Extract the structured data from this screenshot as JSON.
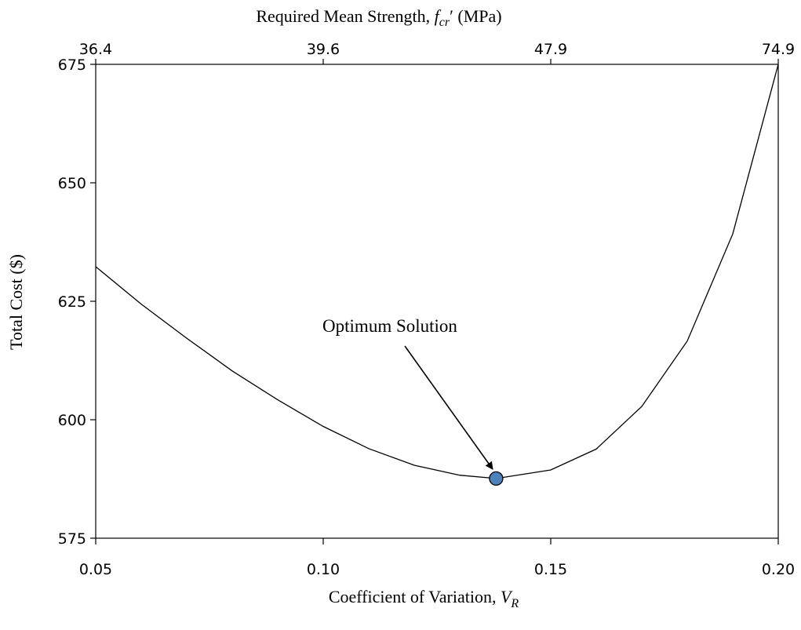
{
  "chart_data": {
    "type": "line",
    "x": [
      0.05,
      0.06,
      0.07,
      0.08,
      0.09,
      0.1,
      0.11,
      0.12,
      0.13,
      0.138,
      0.15,
      0.16,
      0.17,
      0.18,
      0.19,
      0.2
    ],
    "series": [
      {
        "values": [
          632.3,
          624.4,
          617.2,
          610.3,
          604.2,
          598.6,
          593.9,
          590.4,
          588.3,
          587.6,
          589.4,
          593.8,
          602.8,
          616.6,
          639.2,
          675.0
        ]
      }
    ],
    "optimum": {
      "x": 0.138,
      "y": 587.6,
      "label": "Optimum Solution"
    },
    "xlabel": "Coefficient of Variation, ",
    "xlabel_symbol": "V",
    "xlabel_subscript": "R",
    "ylabel": "Total Cost ($)",
    "top_label_prefix": "Required Mean Strength, ",
    "top_label_symbol": "f",
    "top_label_subscript": "cr",
    "top_label_suffix": "′ (MPa)",
    "xlim": [
      0.05,
      0.2
    ],
    "ylim": [
      575,
      675
    ],
    "xticks": [
      0.05,
      0.1,
      0.15,
      0.2
    ],
    "xtick_labels": [
      "0.05",
      "0.10",
      "0.15",
      "0.20"
    ],
    "yticks": [
      575,
      600,
      625,
      650,
      675
    ],
    "ytick_labels": [
      "575",
      "600",
      "625",
      "650",
      "675"
    ],
    "top_ticks_x": [
      0.05,
      0.1,
      0.15,
      0.2
    ],
    "top_tick_labels": [
      "36.4",
      "39.6",
      "47.9",
      "74.9"
    ],
    "grid": false,
    "marker_color": "#4f81bd"
  }
}
